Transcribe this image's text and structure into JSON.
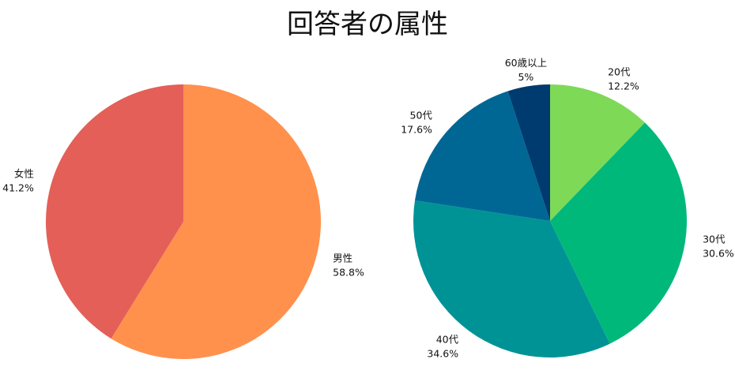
{
  "title": "回答者の属性",
  "chart_data": [
    {
      "type": "pie",
      "name": "gender",
      "labels": [
        "男性",
        "女性"
      ],
      "values": [
        58.8,
        41.2
      ],
      "value_labels": [
        "58.8%",
        "41.2%"
      ],
      "colors": [
        "#FF914D",
        "#E45F58"
      ],
      "start_angle": "12 o'clock",
      "direction": "clockwise"
    },
    {
      "type": "pie",
      "name": "age",
      "labels": [
        "20代",
        "30代",
        "40代",
        "50代",
        "60歳以上"
      ],
      "values": [
        12.2,
        30.6,
        34.6,
        17.6,
        5
      ],
      "value_labels": [
        "12.2%",
        "30.6%",
        "34.6%",
        "17.6%",
        "5%"
      ],
      "colors": [
        "#7ED957",
        "#00B87A",
        "#009396",
        "#006794",
        "#003B6F"
      ],
      "start_angle": "12 o'clock",
      "direction": "clockwise"
    }
  ]
}
